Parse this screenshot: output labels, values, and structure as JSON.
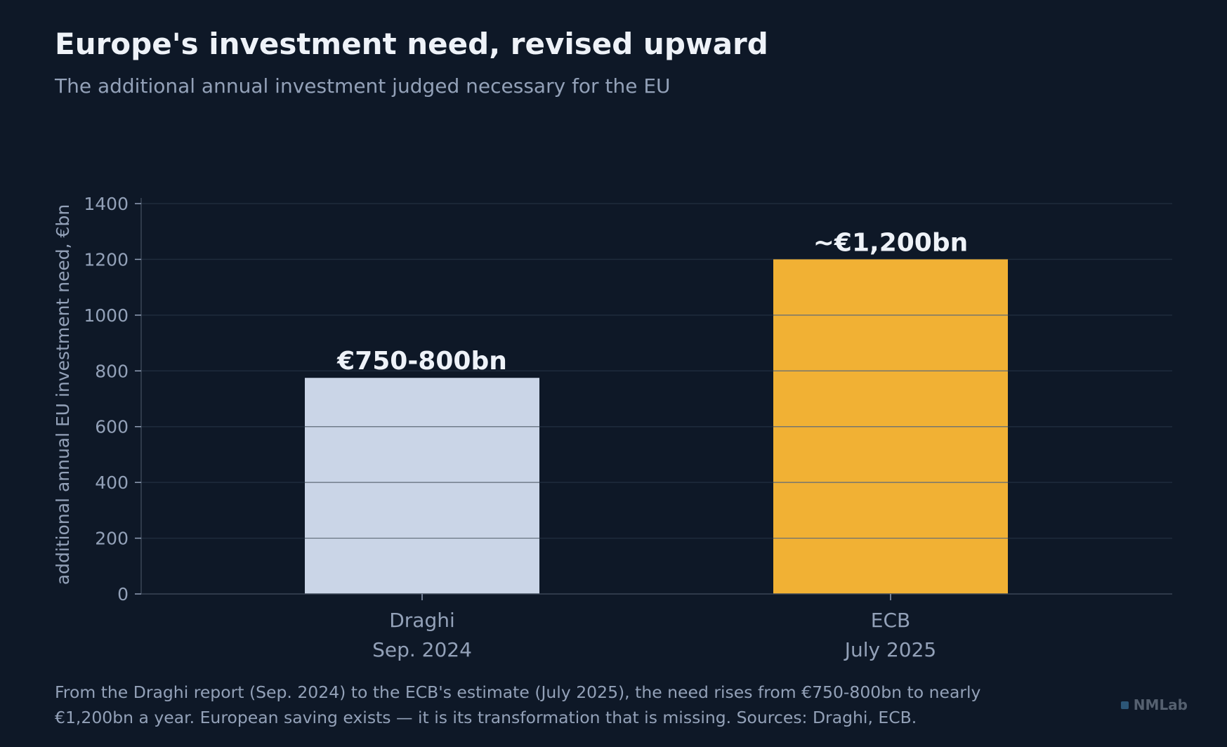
{
  "header": {
    "title": "Europe's investment need, revised upward",
    "subtitle": "The additional annual investment judged necessary for the EU"
  },
  "chart_data": {
    "type": "bar",
    "categories": [
      "Draghi\nSep. 2024",
      "ECB\nJuly 2025"
    ],
    "values": [
      775,
      1200
    ],
    "data_labels": [
      "€750-800bn",
      "~€1,200bn"
    ],
    "colors": [
      "#cad5e7",
      "#f1b134"
    ],
    "ylabel": "additional annual EU investment need, €bn",
    "ylim": [
      0,
      1400
    ],
    "yticks": [
      0,
      200,
      400,
      600,
      800,
      1000,
      1200,
      1400
    ],
    "grid": true,
    "legend": "none"
  },
  "footer": {
    "note": "From the Draghi report (Sep. 2024) to the ECB's estimate (July 2025), the need rises from €750-800bn to nearly €1,200bn a year. European saving exists — it is its transformation that is missing. Sources: Draghi, ECB.",
    "brand": "NMLab"
  },
  "colors": {
    "background": "#0e1827",
    "grid": "#1f2b3c",
    "axis": "#3a4656",
    "text_primary": "#eef2f8",
    "text_secondary": "#93a1b8",
    "bar_divider": "#5f6b78"
  }
}
